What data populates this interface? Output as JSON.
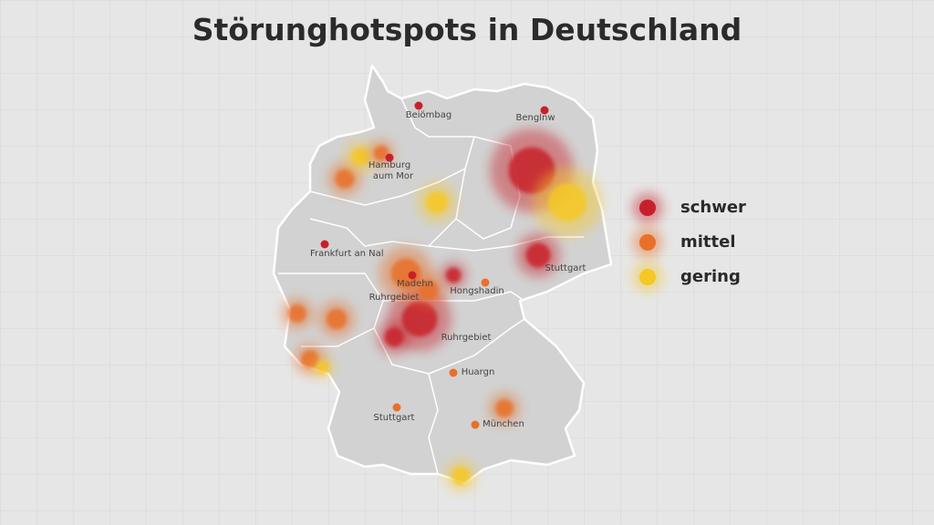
{
  "title": "Störunghotspots in Deutschland",
  "places": [
    {
      "label": "Beiömbag"
    },
    {
      "label": "Benglnw"
    },
    {
      "label": "Hamburg"
    },
    {
      "label": "aum Mor"
    },
    {
      "label": "Frankfurt an Nal"
    },
    {
      "label": "Madehn"
    },
    {
      "label": "Ruhrgebiet"
    },
    {
      "label": "Hongshadin"
    },
    {
      "label": "Ruhrgebiet"
    },
    {
      "label": "Huargn"
    },
    {
      "label": "Stuttgart"
    },
    {
      "label": "München"
    },
    {
      "label": "Stuttgart"
    }
  ],
  "legend": [
    {
      "label": "schwer",
      "color": "#c8202a"
    },
    {
      "label": "mittel",
      "color": "#e8702a"
    },
    {
      "label": "gering",
      "color": "#f5c826"
    }
  ]
}
